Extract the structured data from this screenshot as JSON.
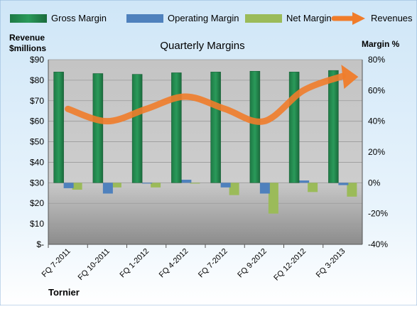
{
  "chart_data": {
    "type": "bar",
    "title": "Quarterly Margins",
    "y_left_label": [
      "Revenue",
      "$millions"
    ],
    "y_right_label": "Margin %",
    "company": "Tornier",
    "categories": [
      "FQ 7-2011",
      "FQ 10-2011",
      "FQ 1-2012",
      "FQ 4-2012",
      "FQ 7-2012",
      "FQ 9-2012",
      "FQ 12-2012",
      "FQ 3-2013"
    ],
    "series": [
      {
        "name": "Gross Margin",
        "kind": "bar",
        "axis": "right",
        "color": "#1e7a45",
        "values": [
          72,
          71,
          70.5,
          71.5,
          72,
          72.5,
          72,
          73
        ]
      },
      {
        "name": "Operating Margin",
        "kind": "bar",
        "axis": "right",
        "color": "#4f81bd",
        "values": [
          -3.5,
          -7,
          -0.5,
          2,
          -3,
          -7,
          1.5,
          -1.5
        ]
      },
      {
        "name": "Net Margin",
        "kind": "bar",
        "axis": "right",
        "color": "#9bbb59",
        "values": [
          -4.5,
          -3,
          -3,
          -0.5,
          -8,
          -20,
          -6,
          -9
        ]
      },
      {
        "name": "Revenues",
        "kind": "line",
        "axis": "left",
        "color": "#f07c2a",
        "values": [
          66,
          60,
          66,
          72,
          66,
          60,
          75,
          82
        ]
      }
    ],
    "y_left": {
      "min": 0,
      "max": 90,
      "step": 10,
      "ticks": [
        "$-",
        "$10",
        "$20",
        "$30",
        "$40",
        "$50",
        "$60",
        "$70",
        "$80",
        "$90"
      ]
    },
    "y_right": {
      "min": -40,
      "max": 80,
      "step": 20,
      "ticks": [
        "-40%",
        "-20%",
        "0%",
        "20%",
        "40%",
        "60%",
        "80%"
      ]
    },
    "legend_position": "top",
    "grid": true
  }
}
